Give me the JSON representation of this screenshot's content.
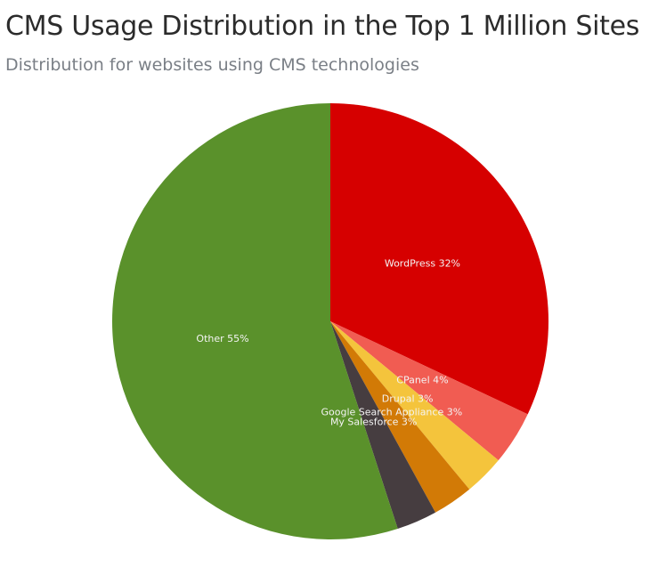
{
  "chart_data": {
    "type": "pie",
    "title": "CMS Usage Distribution in the Top 1 Million Sites",
    "subtitle": "Distribution for websites using CMS technologies",
    "slices": [
      {
        "label": "WordPress",
        "value": 32,
        "display": "WordPress 32%",
        "color": "#d60000"
      },
      {
        "label": "CPanel",
        "value": 4,
        "display": "CPanel 4%",
        "color": "#f15c52"
      },
      {
        "label": "Drupal",
        "value": 3,
        "display": "Drupal 3%",
        "color": "#f4c43c"
      },
      {
        "label": "Google Search Appliance",
        "value": 3,
        "display": "Google Search Appliance 3%",
        "color": "#d27a06"
      },
      {
        "label": "My Salesforce",
        "value": 3,
        "display": "My Salesforce 3%",
        "color": "#463d40"
      },
      {
        "label": "Other",
        "value": 55,
        "display": "Other 55%",
        "color": "#5a912b"
      }
    ],
    "start_angle": "top",
    "direction": "clockwise"
  }
}
